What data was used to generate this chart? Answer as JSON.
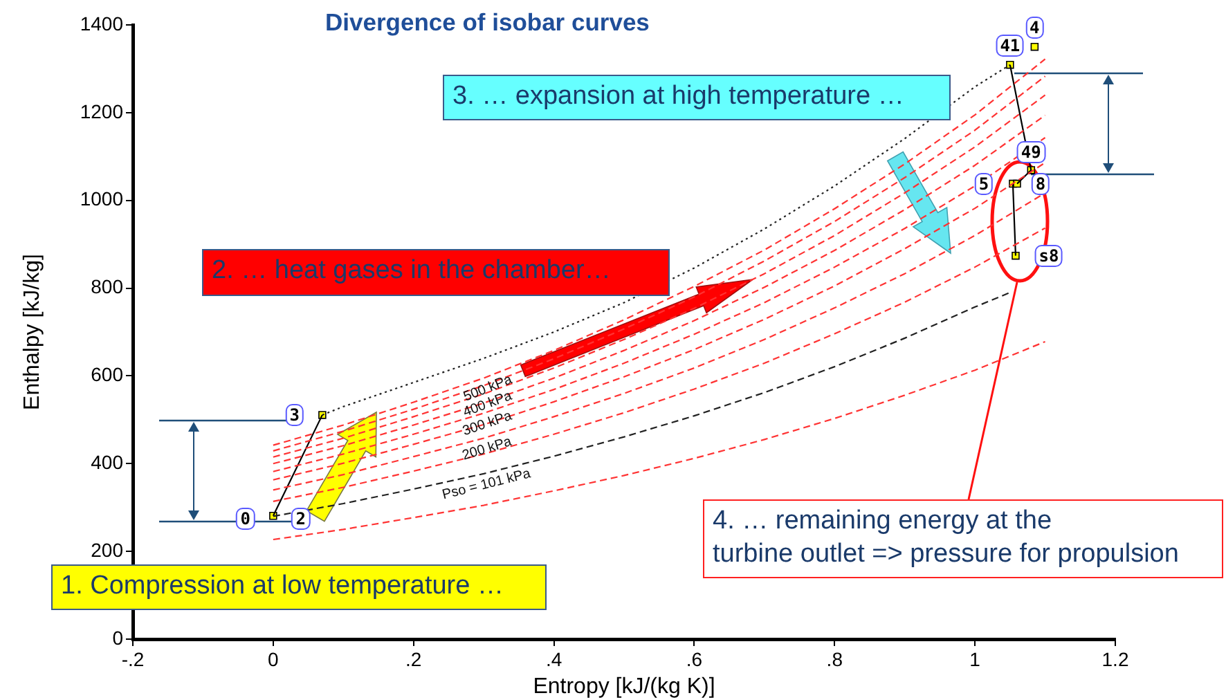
{
  "chart_data": {
    "type": "line",
    "title": "Divergence of isobar curves",
    "xlabel": "Entropy [kJ/(kg K)]",
    "ylabel": "Enthalpy [kJ/kg]",
    "x": [
      0,
      0.1,
      0.2,
      0.3,
      0.4,
      0.5,
      0.6,
      0.7,
      0.8,
      0.9,
      1.0,
      1.1
    ],
    "series": [
      {
        "color": "#ff3333",
        "values": [
          227,
          250,
          277,
          305,
          338,
          373,
          412,
          455,
          503,
          556,
          613,
          678
        ]
      },
      {
        "name": "Pso = 101 kPa",
        "color": "#222222",
        "x": [
          0,
          0.1,
          0.2,
          0.3,
          0.4,
          0.5,
          0.6,
          0.7,
          0.8,
          0.9,
          1.0,
          1.05
        ],
        "values": [
          280,
          309,
          342,
          377,
          417,
          461,
          509,
          562,
          621,
          686,
          757,
          790
        ]
      },
      {
        "color": "#ff3333",
        "values": [
          314,
          346,
          383,
          422,
          467,
          516,
          570,
          629,
          696,
          768,
          848,
          937
        ]
      },
      {
        "name": "200 kPa",
        "color": "#ff3333",
        "values": [
          340,
          375,
          416,
          458,
          507,
          560,
          618,
          683,
          755,
          833,
          920,
          1017
        ]
      },
      {
        "color": "#ff3333",
        "values": [
          363,
          401,
          444,
          489,
          541,
          598,
          660,
          729,
          805,
          890,
          982,
          1086
        ]
      },
      {
        "name": "300 kPa",
        "color": "#ff3333",
        "values": [
          382,
          422,
          467,
          515,
          569,
          629,
          695,
          767,
          848,
          936,
          1033,
          1143
        ]
      },
      {
        "color": "#ff3333",
        "values": [
          400,
          441,
          488,
          538,
          595,
          658,
          726,
          802,
          886,
          979,
          1080,
          1194
        ]
      },
      {
        "name": "400 kPa",
        "color": "#ff3333",
        "values": [
          415,
          458,
          507,
          559,
          618,
          683,
          754,
          833,
          920,
          1017,
          1122,
          1240
        ]
      },
      {
        "color": "#ff3333",
        "values": [
          429,
          474,
          524,
          578,
          639,
          707,
          780,
          862,
          952,
          1052,
          1160,
          1283
        ]
      },
      {
        "name": "500 kPa",
        "color": "#ff3333",
        "values": [
          442,
          488,
          540,
          595,
          658,
          728,
          804,
          887,
          981,
          1083,
          1195,
          1322
        ]
      },
      {
        "color": "#222222",
        "line_style": "dotted",
        "x": [
          0.07,
          0.1,
          0.2,
          0.3,
          0.4,
          0.5,
          0.6,
          0.7,
          0.8,
          0.9,
          1.0,
          1.05
        ],
        "values": [
          511,
          530,
          585,
          640,
          700,
          767,
          846,
          935,
          1033,
          1141,
          1259,
          1309
        ]
      },
      {
        "color": "#000000",
        "line_style": "solid",
        "x": [
          0,
          0.07,
          null,
          1.05,
          1.08,
          1.06,
          null,
          1.054,
          1.058
        ],
        "values": [
          281,
          511,
          null,
          1309,
          1069,
          1038,
          null,
          1038,
          874
        ]
      },
      {
        "type": "scatter",
        "marker": "square",
        "color": "#ffff00",
        "x": [
          0,
          0.07,
          1.05,
          1.085,
          1.08,
          1.054,
          1.06,
          1.058
        ],
        "values": [
          281,
          511,
          1309,
          1350,
          1069,
          1038,
          1038,
          874
        ]
      }
    ],
    "xlim": [
      -0.2,
      1.2
    ],
    "xticks": [
      {
        "value": -0.2,
        "label": "-.2"
      },
      0,
      {
        "value": 0.2,
        "label": ".2"
      },
      {
        "value": 0.4,
        "label": ".4"
      },
      {
        "value": 0.6,
        "label": ".6"
      },
      {
        "value": 0.8,
        "label": ".8"
      },
      1,
      1.2
    ],
    "ylim": [
      0,
      1400
    ],
    "yticks": [
      0,
      200,
      400,
      600,
      800,
      1000,
      1200,
      1400
    ],
    "grid": false,
    "legend": false,
    "line_style": "dashed",
    "annotations": [
      "1. Compression at low temperature …",
      "2. … heat gases in the chamber…",
      "3. … expansion at high temperature …",
      "4. … remaining energy at the\nturbine outlet => pressure for propulsion",
      {
        "text": "0",
        "x": 0,
        "y": 281
      },
      {
        "text": "2",
        "x": 0,
        "y": 281
      },
      {
        "text": "3",
        "x": 0.07,
        "y": 511
      },
      {
        "text": "41",
        "x": 1.05,
        "y": 1309
      },
      {
        "text": "4",
        "x": 1.085,
        "y": 1350
      },
      {
        "text": "49",
        "x": 1.08,
        "y": 1069
      },
      {
        "text": "5",
        "x": 1.054,
        "y": 1038
      },
      {
        "text": "8",
        "x": 1.06,
        "y": 1038
      },
      {
        "text": "s8",
        "x": 1.058,
        "y": 874
      }
    ]
  }
}
